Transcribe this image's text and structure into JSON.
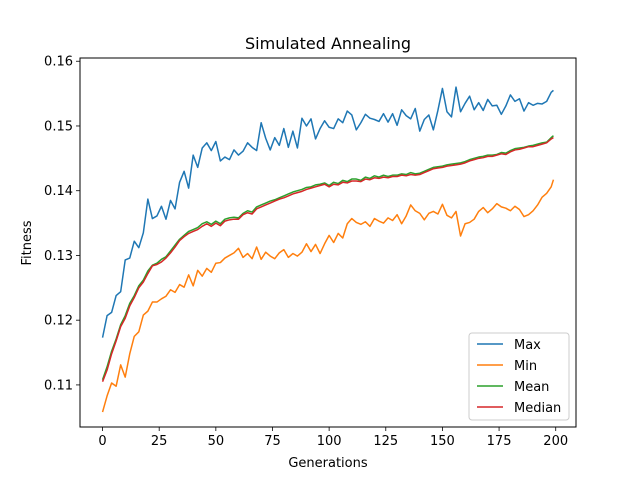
{
  "chart_data": {
    "type": "line",
    "title": "Simulated Annealing",
    "xlabel": "Generations",
    "ylabel": "Fitness",
    "xlim": [
      -9.95,
      208.95
    ],
    "ylim": [
      0.1035,
      0.1605
    ],
    "xticks": [
      0,
      25,
      50,
      75,
      100,
      125,
      150,
      175,
      200
    ],
    "yticks": [
      0.11,
      0.12,
      0.13,
      0.14,
      0.15,
      0.16
    ],
    "grid": false,
    "legend": "lower-right",
    "series": [
      {
        "name": "Max",
        "color": "#1f77b4",
        "x": [
          0,
          2,
          4,
          6,
          8,
          10,
          12,
          14,
          16,
          18,
          20,
          22,
          24,
          26,
          28,
          30,
          32,
          34,
          36,
          38,
          40,
          42,
          44,
          46,
          48,
          50,
          52,
          54,
          56,
          58,
          60,
          62,
          64,
          66,
          68,
          70,
          72,
          74,
          76,
          78,
          80,
          82,
          84,
          86,
          88,
          90,
          92,
          94,
          96,
          98,
          100,
          102,
          104,
          106,
          108,
          110,
          112,
          114,
          116,
          118,
          120,
          122,
          124,
          126,
          128,
          130,
          132,
          134,
          136,
          138,
          140,
          142,
          144,
          146,
          148,
          150,
          152,
          154,
          156,
          158,
          160,
          162,
          164,
          166,
          168,
          170,
          172,
          174,
          176,
          178,
          180,
          182,
          184,
          186,
          188,
          190,
          192,
          194,
          196,
          198,
          199
        ],
        "values": [
          0.1173,
          0.1207,
          0.1212,
          0.1238,
          0.1244,
          0.1293,
          0.1296,
          0.1322,
          0.1312,
          0.1335,
          0.1387,
          0.1357,
          0.1361,
          0.1376,
          0.1356,
          0.1385,
          0.1372,
          0.1413,
          0.143,
          0.1404,
          0.1455,
          0.1436,
          0.1466,
          0.1474,
          0.1462,
          0.1476,
          0.1446,
          0.1452,
          0.1448,
          0.1463,
          0.1455,
          0.1461,
          0.1474,
          0.1467,
          0.1462,
          0.1505,
          0.1481,
          0.1463,
          0.1482,
          0.147,
          0.1496,
          0.1467,
          0.1492,
          0.1466,
          0.1512,
          0.15,
          0.1511,
          0.148,
          0.1496,
          0.1508,
          0.1498,
          0.1496,
          0.1511,
          0.1505,
          0.1523,
          0.1517,
          0.1494,
          0.1505,
          0.1518,
          0.1512,
          0.151,
          0.1507,
          0.1519,
          0.1506,
          0.1519,
          0.1501,
          0.1525,
          0.1516,
          0.1511,
          0.1527,
          0.1492,
          0.151,
          0.1517,
          0.1494,
          0.1524,
          0.1558,
          0.1522,
          0.1514,
          0.156,
          0.1522,
          0.1535,
          0.1546,
          0.1525,
          0.1536,
          0.1524,
          0.1541,
          0.1531,
          0.1532,
          0.1518,
          0.1531,
          0.1548,
          0.1538,
          0.1542,
          0.1523,
          0.1536,
          0.1532,
          0.1535,
          0.1534,
          0.1538,
          0.1552,
          0.1555
        ]
      },
      {
        "name": "Min",
        "color": "#ff7f0e",
        "x": [
          0,
          2,
          4,
          6,
          8,
          10,
          12,
          14,
          16,
          18,
          20,
          22,
          24,
          26,
          28,
          30,
          32,
          34,
          36,
          38,
          40,
          42,
          44,
          46,
          48,
          50,
          52,
          54,
          56,
          58,
          60,
          62,
          64,
          66,
          68,
          70,
          72,
          74,
          76,
          78,
          80,
          82,
          84,
          86,
          88,
          90,
          92,
          94,
          96,
          98,
          100,
          102,
          104,
          106,
          108,
          110,
          112,
          114,
          116,
          118,
          120,
          122,
          124,
          126,
          128,
          130,
          132,
          134,
          136,
          138,
          140,
          142,
          144,
          146,
          148,
          150,
          152,
          154,
          156,
          158,
          160,
          162,
          164,
          166,
          168,
          170,
          172,
          174,
          176,
          178,
          180,
          182,
          184,
          186,
          188,
          190,
          192,
          194,
          196,
          198,
          199
        ],
        "values": [
          0.1058,
          0.1083,
          0.1103,
          0.1098,
          0.1131,
          0.1112,
          0.1148,
          0.1175,
          0.1182,
          0.1208,
          0.1214,
          0.1228,
          0.1228,
          0.1233,
          0.1237,
          0.1247,
          0.1243,
          0.1255,
          0.1251,
          0.127,
          0.1253,
          0.1277,
          0.1268,
          0.128,
          0.1274,
          0.1288,
          0.1289,
          0.1296,
          0.13,
          0.1304,
          0.1311,
          0.1297,
          0.1303,
          0.1295,
          0.1313,
          0.1294,
          0.1305,
          0.1299,
          0.1295,
          0.1304,
          0.1309,
          0.1297,
          0.1303,
          0.1299,
          0.1305,
          0.1318,
          0.1306,
          0.1317,
          0.1303,
          0.1318,
          0.1331,
          0.132,
          0.1334,
          0.1327,
          0.1349,
          0.1357,
          0.1351,
          0.1348,
          0.1352,
          0.1345,
          0.1357,
          0.1353,
          0.135,
          0.1358,
          0.1354,
          0.1363,
          0.1349,
          0.1361,
          0.1378,
          0.1369,
          0.1365,
          0.1355,
          0.1365,
          0.1368,
          0.1364,
          0.1379,
          0.1362,
          0.1358,
          0.1368,
          0.133,
          0.1349,
          0.1351,
          0.1356,
          0.1368,
          0.1374,
          0.1366,
          0.1372,
          0.138,
          0.1375,
          0.1373,
          0.1369,
          0.1376,
          0.1371,
          0.136,
          0.1363,
          0.1369,
          0.1378,
          0.139,
          0.1396,
          0.1406,
          0.1417
        ]
      },
      {
        "name": "Mean",
        "color": "#2ca02c",
        "x": [
          0,
          2,
          4,
          6,
          8,
          10,
          12,
          14,
          16,
          18,
          20,
          22,
          24,
          26,
          28,
          30,
          32,
          34,
          36,
          38,
          40,
          42,
          44,
          46,
          48,
          50,
          52,
          54,
          56,
          58,
          60,
          62,
          64,
          66,
          68,
          70,
          72,
          74,
          76,
          78,
          80,
          82,
          84,
          86,
          88,
          90,
          92,
          94,
          96,
          98,
          100,
          102,
          104,
          106,
          108,
          110,
          112,
          114,
          116,
          118,
          120,
          122,
          124,
          126,
          128,
          130,
          132,
          134,
          136,
          138,
          140,
          142,
          144,
          146,
          148,
          150,
          152,
          154,
          156,
          158,
          160,
          162,
          164,
          166,
          168,
          170,
          172,
          174,
          176,
          178,
          180,
          182,
          184,
          186,
          188,
          190,
          192,
          194,
          196,
          198,
          199
        ],
        "values": [
          0.1108,
          0.1128,
          0.1152,
          0.1171,
          0.1193,
          0.1207,
          0.1226,
          0.1238,
          0.1253,
          0.1262,
          0.1276,
          0.1285,
          0.1288,
          0.1294,
          0.1298,
          0.1307,
          0.1316,
          0.1325,
          0.1331,
          0.1337,
          0.134,
          0.1343,
          0.1349,
          0.1352,
          0.1348,
          0.1353,
          0.1349,
          0.1356,
          0.1358,
          0.1359,
          0.1358,
          0.1365,
          0.1369,
          0.1367,
          0.1375,
          0.1378,
          0.1381,
          0.1384,
          0.1386,
          0.1389,
          0.1392,
          0.1395,
          0.1398,
          0.14,
          0.1402,
          0.1405,
          0.1406,
          0.1409,
          0.141,
          0.1412,
          0.1408,
          0.1413,
          0.1411,
          0.1416,
          0.1414,
          0.1418,
          0.1418,
          0.1416,
          0.1421,
          0.1419,
          0.1423,
          0.1421,
          0.1424,
          0.1422,
          0.1424,
          0.1424,
          0.1426,
          0.1425,
          0.1428,
          0.1426,
          0.1427,
          0.143,
          0.1433,
          0.1436,
          0.1437,
          0.1438,
          0.144,
          0.1441,
          0.1442,
          0.1443,
          0.1445,
          0.1448,
          0.145,
          0.1452,
          0.1453,
          0.1455,
          0.1455,
          0.1456,
          0.1459,
          0.1458,
          0.1462,
          0.1465,
          0.1466,
          0.1467,
          0.1469,
          0.147,
          0.1472,
          0.1474,
          0.1475,
          0.1482,
          0.1485
        ]
      },
      {
        "name": "Median",
        "color": "#d62728",
        "x": [
          0,
          2,
          4,
          6,
          8,
          10,
          12,
          14,
          16,
          18,
          20,
          22,
          24,
          26,
          28,
          30,
          32,
          34,
          36,
          38,
          40,
          42,
          44,
          46,
          48,
          50,
          52,
          54,
          56,
          58,
          60,
          62,
          64,
          66,
          68,
          70,
          72,
          74,
          76,
          78,
          80,
          82,
          84,
          86,
          88,
          90,
          92,
          94,
          96,
          98,
          100,
          102,
          104,
          106,
          108,
          110,
          112,
          114,
          116,
          118,
          120,
          122,
          124,
          126,
          128,
          130,
          132,
          134,
          136,
          138,
          140,
          142,
          144,
          146,
          148,
          150,
          152,
          154,
          156,
          158,
          160,
          162,
          164,
          166,
          168,
          170,
          172,
          174,
          176,
          178,
          180,
          182,
          184,
          186,
          188,
          190,
          192,
          194,
          196,
          198,
          199
        ],
        "values": [
          0.1105,
          0.1123,
          0.1148,
          0.1168,
          0.119,
          0.1203,
          0.1222,
          0.1235,
          0.125,
          0.1259,
          0.1272,
          0.1284,
          0.1286,
          0.129,
          0.1296,
          0.1304,
          0.1313,
          0.1323,
          0.1329,
          0.1334,
          0.1337,
          0.134,
          0.1345,
          0.1349,
          0.1345,
          0.135,
          0.1346,
          0.1353,
          0.1355,
          0.1356,
          0.1356,
          0.1363,
          0.1366,
          0.1364,
          0.1372,
          0.1375,
          0.1378,
          0.1381,
          0.1384,
          0.1387,
          0.1389,
          0.1392,
          0.1395,
          0.1397,
          0.1399,
          0.1402,
          0.1404,
          0.1406,
          0.1408,
          0.141,
          0.1406,
          0.141,
          0.1409,
          0.1413,
          0.1412,
          0.1415,
          0.1415,
          0.1414,
          0.1418,
          0.1417,
          0.142,
          0.1419,
          0.1421,
          0.142,
          0.1422,
          0.1422,
          0.1424,
          0.1423,
          0.1425,
          0.1424,
          0.1425,
          0.1428,
          0.1431,
          0.1434,
          0.1435,
          0.1436,
          0.1438,
          0.1439,
          0.144,
          0.1441,
          0.1443,
          0.1446,
          0.1448,
          0.145,
          0.1451,
          0.1453,
          0.1453,
          0.1455,
          0.1457,
          0.1456,
          0.146,
          0.1463,
          0.1464,
          0.1466,
          0.1468,
          0.1468,
          0.147,
          0.1472,
          0.1474,
          0.148,
          0.1482
        ]
      }
    ]
  }
}
